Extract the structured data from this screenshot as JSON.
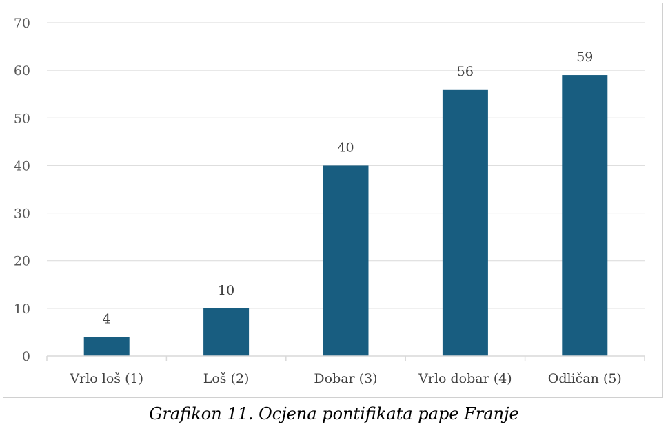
{
  "chart_data": {
    "type": "bar",
    "title": "",
    "xlabel": "",
    "ylabel": "",
    "categories": [
      "Vrlo loš (1)",
      "Loš (2)",
      "Dobar (3)",
      "Vrlo dobar (4)",
      "Odličan (5)"
    ],
    "values": [
      4,
      10,
      40,
      56,
      59
    ],
    "ylim": [
      0,
      70
    ],
    "yticks": [
      0,
      10,
      20,
      30,
      40,
      50,
      60,
      70
    ],
    "grid": true,
    "legend": "none",
    "data_labels": true,
    "bar_color": "#185d80",
    "grid_color": "#d9d9d9"
  },
  "caption": "Grafikon 11. Ocjena pontifikata pape Franje"
}
